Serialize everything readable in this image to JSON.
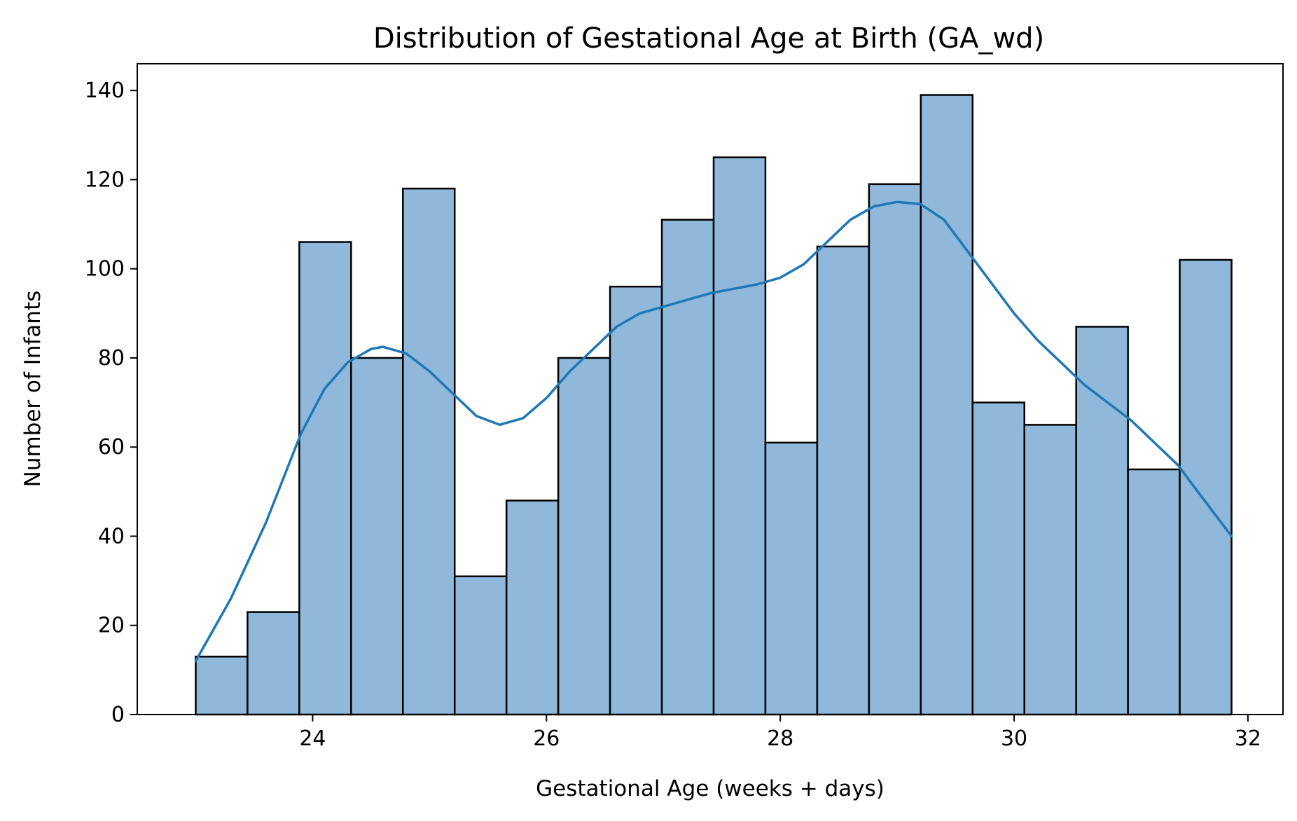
{
  "chart_data": {
    "type": "bar",
    "title": "Distribution of Gestational Age at Birth (GA_wd)",
    "xlabel": "Gestational Age (weeks + days)",
    "ylabel": "Number of Infants",
    "xlim": [
      22.5,
      32.3
    ],
    "ylim": [
      0,
      146
    ],
    "xticks": [
      24,
      26,
      28,
      30,
      32
    ],
    "yticks": [
      0,
      20,
      40,
      60,
      80,
      100,
      120,
      140
    ],
    "bin_edges": [
      23.0,
      23.443,
      23.886,
      24.329,
      24.772,
      25.215,
      25.658,
      26.101,
      26.544,
      26.987,
      27.43,
      27.873,
      28.316,
      28.759,
      29.202,
      29.645,
      30.088,
      30.531,
      30.974,
      31.417,
      31.86
    ],
    "values": [
      13,
      23,
      106,
      80,
      118,
      31,
      48,
      80,
      96,
      111,
      125,
      61,
      105,
      119,
      139,
      70,
      65,
      87,
      55,
      102
    ],
    "bar_color": "#8fb8da",
    "edge_color": "#000000",
    "grid": false,
    "kde": {
      "color": "#1f77b4",
      "x": [
        23.0,
        23.3,
        23.6,
        23.9,
        24.1,
        24.3,
        24.5,
        24.6,
        24.8,
        25.0,
        25.2,
        25.4,
        25.6,
        25.8,
        26.0,
        26.2,
        26.4,
        26.6,
        26.8,
        27.0,
        27.2,
        27.4,
        27.6,
        27.8,
        28.0,
        28.2,
        28.4,
        28.6,
        28.8,
        29.0,
        29.2,
        29.4,
        29.6,
        29.8,
        30.0,
        30.2,
        30.4,
        30.6,
        30.8,
        31.0,
        31.2,
        31.4,
        31.6,
        31.86
      ],
      "y": [
        12,
        26,
        43,
        63,
        73,
        79,
        82,
        82.5,
        81,
        77,
        72,
        67,
        65,
        66.5,
        71,
        77,
        82,
        87,
        90,
        91.5,
        93,
        94.5,
        95.5,
        96.5,
        98,
        101,
        106,
        111,
        114,
        115,
        114.5,
        111,
        104,
        97,
        90,
        84,
        79,
        74,
        70,
        66,
        61,
        56,
        49,
        40
      ]
    }
  }
}
